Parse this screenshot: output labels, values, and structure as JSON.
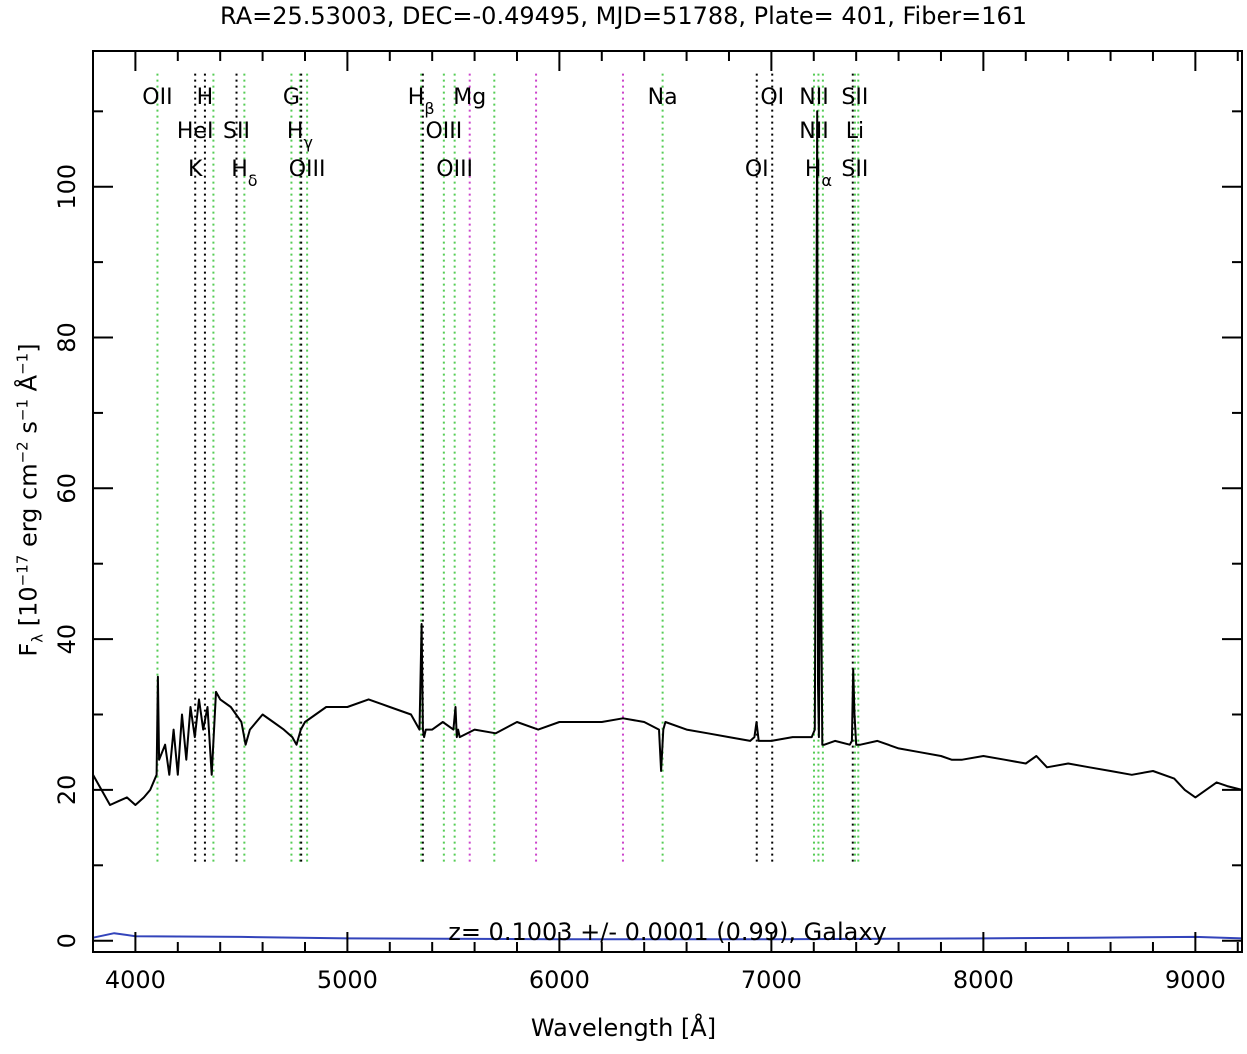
{
  "chart_data": {
    "type": "line",
    "title": "RA=25.53003, DEC=-0.49495, MJD=51788, Plate= 401, Fiber=161",
    "xlabel": "Wavelength [Å]",
    "ylabel": {
      "f": "F",
      "lambda": "λ",
      "pre": "[10",
      "exp1": "−17",
      "mid1": "erg cm",
      "exp2": "−2",
      "mid2": "s",
      "exp3": "−1",
      "mid3": "Å",
      "exp4": "−1",
      "post": "]"
    },
    "xlim": [
      3800,
      9220
    ],
    "ylim": [
      -1.5,
      118
    ],
    "xticks": [
      4000,
      5000,
      6000,
      7000,
      8000,
      9000
    ],
    "xtick_labels": [
      "4000",
      "5000",
      "6000",
      "7000",
      "8000",
      "9000"
    ],
    "yticks": [
      0,
      20,
      40,
      60,
      80,
      100
    ],
    "ytick_labels": [
      "0",
      "20",
      "40",
      "60",
      "80",
      "100"
    ],
    "grid": false,
    "annotation": "z= 0.1003 +/- 0.0001 (0.99), Galaxy",
    "colors": {
      "flux": "#000000",
      "error": "#3344bb",
      "emission": "#55cc55",
      "absorption": "#000000",
      "sky": "#cc44cc"
    },
    "series": [
      {
        "role": "flux",
        "x": [
          3800,
          3840,
          3880,
          3920,
          3960,
          4000,
          4040,
          4070,
          4100,
          4106,
          4112,
          4140,
          4160,
          4180,
          4200,
          4220,
          4240,
          4260,
          4280,
          4300,
          4320,
          4340,
          4360,
          4380,
          4400,
          4450,
          4500,
          4520,
          4540,
          4600,
          4650,
          4700,
          4740,
          4760,
          4780,
          4800,
          4850,
          4900,
          5000,
          5100,
          5200,
          5300,
          5340,
          5350,
          5356,
          5362,
          5370,
          5400,
          5450,
          5500,
          5510,
          5516,
          5522,
          5530,
          5600,
          5700,
          5800,
          5900,
          6000,
          6100,
          6200,
          6300,
          6400,
          6470,
          6480,
          6490,
          6500,
          6600,
          6700,
          6800,
          6900,
          6920,
          6930,
          6940,
          7000,
          7100,
          7190,
          7205,
          7210,
          7216,
          7220,
          7224,
          7228,
          7232,
          7240,
          7250,
          7300,
          7370,
          7380,
          7386,
          7392,
          7400,
          7420,
          7500,
          7600,
          7700,
          7800,
          7850,
          7900,
          8000,
          8100,
          8200,
          8250,
          8300,
          8400,
          8500,
          8600,
          8700,
          8800,
          8900,
          8950,
          9000,
          9050,
          9100,
          9150,
          9220
        ],
        "y": [
          22,
          20,
          18,
          18.5,
          19,
          18,
          19,
          20,
          22,
          35,
          24,
          26,
          22,
          28,
          22,
          30,
          24,
          31,
          27,
          32,
          28,
          31,
          22,
          33,
          32,
          31,
          29,
          26,
          28,
          30,
          29,
          28,
          27,
          26,
          28,
          29,
          30,
          31,
          31,
          32,
          31,
          30,
          28,
          42,
          28,
          27,
          28,
          28,
          29,
          28,
          31,
          27,
          28,
          27,
          28,
          27.5,
          29,
          28,
          29,
          29,
          29,
          29.5,
          29,
          28,
          22.5,
          28,
          29,
          28,
          27.5,
          27,
          26.5,
          27,
          29,
          26.5,
          26.5,
          27,
          27,
          28,
          62,
          110,
          34,
          27,
          45,
          57,
          26,
          26,
          26.5,
          26,
          26.5,
          36,
          30,
          26,
          26,
          26.5,
          25.5,
          25,
          24.5,
          24,
          24,
          24.5,
          24,
          23.5,
          24.5,
          23,
          23.5,
          23,
          22.5,
          22,
          22.5,
          21.5,
          20,
          19,
          20,
          21,
          20.5,
          20
        ]
      },
      {
        "role": "error",
        "x": [
          3800,
          3900,
          4000,
          4500,
          5000,
          6000,
          7000,
          8000,
          8500,
          9000,
          9220
        ],
        "y": [
          0.4,
          1.0,
          0.6,
          0.5,
          0.3,
          0.2,
          0.2,
          0.3,
          0.4,
          0.5,
          0.3
        ]
      }
    ],
    "lines": [
      {
        "x": 4104,
        "kind": "emission"
      },
      {
        "x": 4282,
        "kind": "absorption"
      },
      {
        "x": 4328,
        "kind": "absorption"
      },
      {
        "x": 4368,
        "kind": "emission"
      },
      {
        "x": 4477,
        "kind": "absorption"
      },
      {
        "x": 4514,
        "kind": "emission"
      },
      {
        "x": 4736,
        "kind": "emission"
      },
      {
        "x": 4776,
        "kind": "emission"
      },
      {
        "x": 4782,
        "kind": "absorption"
      },
      {
        "x": 4810,
        "kind": "emission"
      },
      {
        "x": 5348,
        "kind": "emission"
      },
      {
        "x": 5356,
        "kind": "absorption"
      },
      {
        "x": 5455,
        "kind": "emission"
      },
      {
        "x": 5506,
        "kind": "emission"
      },
      {
        "x": 5577,
        "kind": "sky"
      },
      {
        "x": 5693,
        "kind": "emission"
      },
      {
        "x": 5890,
        "kind": "sky"
      },
      {
        "x": 6300,
        "kind": "sky"
      },
      {
        "x": 6487,
        "kind": "emission"
      },
      {
        "x": 6931,
        "kind": "absorption"
      },
      {
        "x": 7004,
        "kind": "absorption"
      },
      {
        "x": 7201,
        "kind": "emission"
      },
      {
        "x": 7222,
        "kind": "emission"
      },
      {
        "x": 7243,
        "kind": "emission"
      },
      {
        "x": 7384,
        "kind": "absorption"
      },
      {
        "x": 7394,
        "kind": "emission"
      },
      {
        "x": 7410,
        "kind": "emission"
      }
    ],
    "line_labels": [
      {
        "x": 4104,
        "y": 112,
        "text": "OII",
        "sub": ""
      },
      {
        "x": 4328,
        "y": 112,
        "text": "H",
        "sub": ""
      },
      {
        "x": 4282,
        "y": 107.5,
        "text": "HeI",
        "sub": ""
      },
      {
        "x": 4477,
        "y": 107.5,
        "text": "SII",
        "sub": ""
      },
      {
        "x": 4282,
        "y": 102.5,
        "text": "K",
        "sub": ""
      },
      {
        "x": 4514,
        "y": 102.5,
        "text": "H",
        "sub": "δ"
      },
      {
        "x": 4736,
        "y": 112,
        "text": "G",
        "sub": ""
      },
      {
        "x": 4776,
        "y": 107.5,
        "text": "H",
        "sub": "γ"
      },
      {
        "x": 4810,
        "y": 102.5,
        "text": "OIII",
        "sub": ""
      },
      {
        "x": 5348,
        "y": 112,
        "text": "H",
        "sub": "β"
      },
      {
        "x": 5455,
        "y": 107.5,
        "text": "OIII",
        "sub": ""
      },
      {
        "x": 5506,
        "y": 102.5,
        "text": "OIII",
        "sub": ""
      },
      {
        "x": 5577,
        "y": 112,
        "text": "Mg",
        "sub": ""
      },
      {
        "x": 6487,
        "y": 112,
        "text": "Na",
        "sub": ""
      },
      {
        "x": 7004,
        "y": 112,
        "text": "OI",
        "sub": ""
      },
      {
        "x": 6931,
        "y": 102.5,
        "text": "OI",
        "sub": ""
      },
      {
        "x": 7201,
        "y": 112,
        "text": "NII",
        "sub": ""
      },
      {
        "x": 7394,
        "y": 112,
        "text": "SII",
        "sub": ""
      },
      {
        "x": 7201,
        "y": 107.5,
        "text": "NII",
        "sub": ""
      },
      {
        "x": 7394,
        "y": 107.5,
        "text": "Li",
        "sub": ""
      },
      {
        "x": 7222,
        "y": 102.5,
        "text": "H",
        "sub": "α"
      },
      {
        "x": 7394,
        "y": 102.5,
        "text": "SII",
        "sub": ""
      }
    ]
  }
}
